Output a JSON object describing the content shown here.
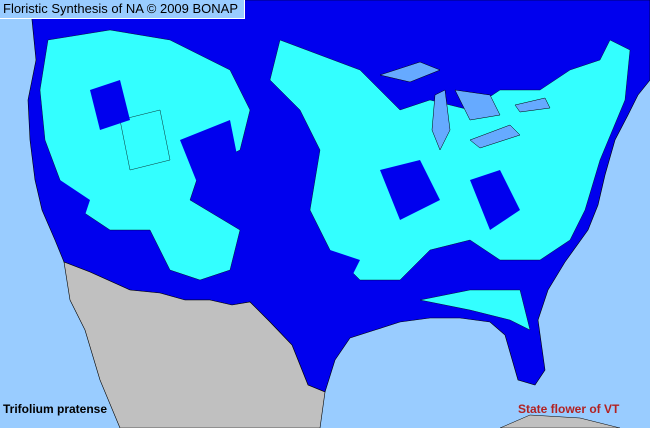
{
  "header": {
    "title": "Floristic Synthesis of NA © 2009 BONAP"
  },
  "footer": {
    "species": "Trifolium pratense",
    "note": "State flower of VT"
  },
  "colors": {
    "ocean": "#99ccff",
    "present_native_region": "#0000ee",
    "county_present": "#33ffff",
    "outside_range": "#c0c0c0",
    "lakes": "#66aaff",
    "note_text": "#b22222"
  }
}
